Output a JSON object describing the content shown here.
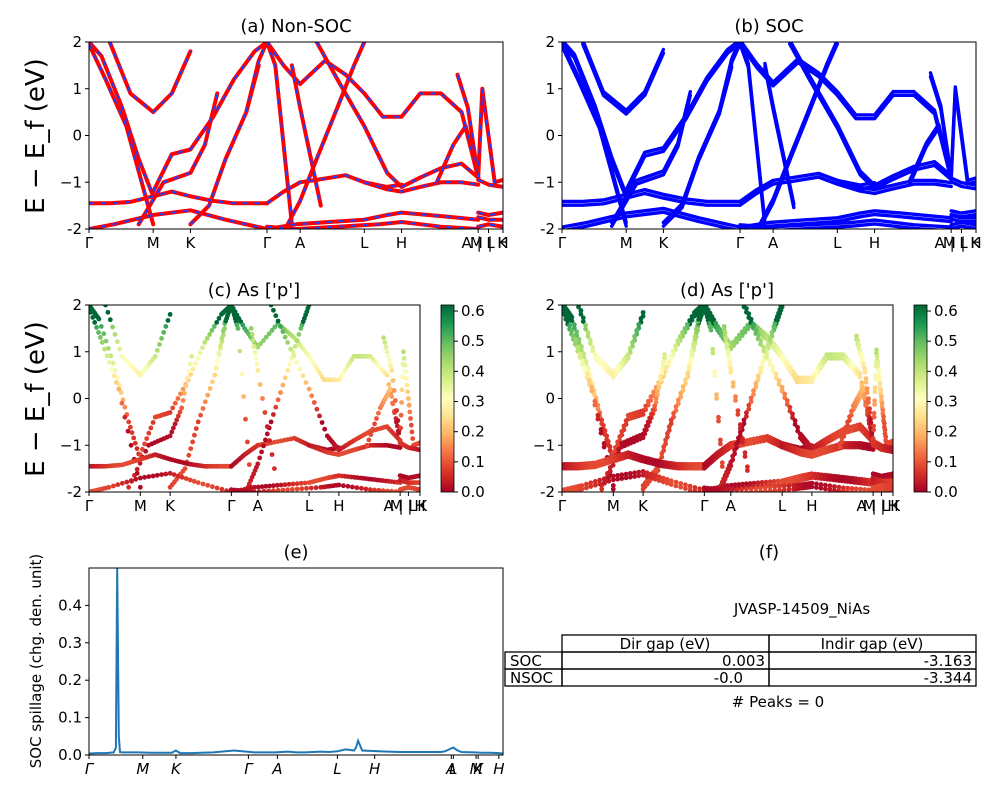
{
  "colors": {
    "nonsoc_base": "#ff0000",
    "nonsoc_dash": "#1f3fff",
    "soc": "#0000ff",
    "spillage": "#1f77b4",
    "colormap": [
      "#a50026",
      "#d73027",
      "#f46d43",
      "#fdae61",
      "#fee08b",
      "#ffffbf",
      "#d9ef8b",
      "#a6d96a",
      "#66bd63",
      "#1a9850",
      "#006837"
    ]
  },
  "chart_data": [
    {
      "id": "a",
      "type": "line",
      "title": "(a) Non-SOC",
      "ylabel": "E − E_f (eV)",
      "ylim": [
        -2,
        2
      ],
      "yticks": [
        "-2",
        "−1",
        "0",
        "1",
        "2"
      ],
      "kpath": [
        "Γ",
        "M",
        "K",
        "Γ",
        "A",
        "L",
        "H",
        "A | L",
        "M | K",
        "H"
      ],
      "kpos": [
        0,
        0.155,
        0.245,
        0.43,
        0.51,
        0.665,
        0.755,
        0.94,
        0.965,
        1.0
      ],
      "series": [
        {
          "x": [
            0,
            0.03,
            0.08,
            0.12,
            0.155
          ],
          "y": [
            2.0,
            1.7,
            0.6,
            -0.5,
            -1.3
          ]
        },
        {
          "x": [
            0,
            0.04,
            0.09,
            0.155
          ],
          "y": [
            1.95,
            1.2,
            0.2,
            -1.9
          ]
        },
        {
          "x": [
            0.05,
            0.1,
            0.155,
            0.2,
            0.245
          ],
          "y": [
            2.0,
            0.9,
            0.5,
            0.9,
            1.8
          ]
        },
        {
          "x": [
            0.155,
            0.2,
            0.245,
            0.3,
            0.35,
            0.4,
            0.43
          ],
          "y": [
            -1.2,
            -0.4,
            -0.3,
            0.4,
            1.2,
            1.8,
            2.0
          ]
        },
        {
          "x": [
            0.12,
            0.18,
            0.245,
            0.28,
            0.31
          ],
          "y": [
            -1.9,
            -1.0,
            -0.8,
            -0.2,
            0.9
          ]
        },
        {
          "x": [
            0.245,
            0.29,
            0.33,
            0.38,
            0.41
          ],
          "y": [
            -1.9,
            -1.5,
            -0.5,
            0.5,
            1.5
          ]
        },
        {
          "x": [
            0.38,
            0.41,
            0.43,
            0.45,
            0.49
          ],
          "y": [
            0.5,
            1.6,
            2.0,
            1.5,
            -1.9
          ]
        },
        {
          "x": [
            0,
            0.05,
            0.1,
            0.155,
            0.2,
            0.245,
            0.3,
            0.35,
            0.4,
            0.43
          ],
          "y": [
            -1.45,
            -1.45,
            -1.42,
            -1.3,
            -1.2,
            -1.3,
            -1.4,
            -1.45,
            -1.45,
            -1.45
          ]
        },
        {
          "x": [
            0,
            0.06,
            0.155,
            0.245,
            0.33,
            0.43
          ],
          "y": [
            -2.0,
            -1.9,
            -1.7,
            -1.6,
            -1.8,
            -2.0
          ]
        },
        {
          "x": [
            0.43,
            0.47,
            0.51,
            0.55,
            0.62,
            0.665,
            0.72,
            0.755
          ],
          "y": [
            -1.45,
            -1.2,
            -1.0,
            -0.95,
            -0.85,
            -1.0,
            -1.1,
            -1.05
          ]
        },
        {
          "x": [
            0.43,
            0.47,
            0.51,
            0.57,
            0.62,
            0.665,
            0.71,
            0.755,
            0.8,
            0.85,
            0.9,
            0.94
          ],
          "y": [
            2.0,
            1.5,
            1.1,
            1.6,
            1.3,
            0.9,
            0.4,
            0.4,
            0.9,
            0.9,
            0.5,
            -0.9
          ]
        },
        {
          "x": [
            0.48,
            0.51,
            0.55,
            0.6,
            0.64,
            0.665
          ],
          "y": [
            -1.9,
            -1.4,
            -0.5,
            0.6,
            1.5,
            2.0
          ]
        },
        {
          "x": [
            0.49,
            0.51,
            0.56
          ],
          "y": [
            1.5,
            0.6,
            -1.5
          ]
        },
        {
          "x": [
            0.55,
            0.6,
            0.665,
            0.72,
            0.755,
            0.8,
            0.85,
            0.9,
            0.94
          ],
          "y": [
            2.0,
            1.2,
            0.2,
            -0.8,
            -1.1,
            -0.9,
            -0.7,
            -0.6,
            -0.9
          ]
        },
        {
          "x": [
            0.665,
            0.72,
            0.755,
            0.8,
            0.85,
            0.9,
            0.94
          ],
          "y": [
            -1.0,
            -1.15,
            -1.2,
            -1.1,
            -1.0,
            -1.0,
            -1.05
          ]
        },
        {
          "x": [
            0.43,
            0.5,
            0.58,
            0.665,
            0.72,
            0.755,
            0.82,
            0.88,
            0.94
          ],
          "y": [
            -2.0,
            -1.9,
            -1.85,
            -1.8,
            -1.7,
            -1.65,
            -1.7,
            -1.75,
            -1.8
          ]
        },
        {
          "x": [
            0.43,
            0.5,
            0.6,
            0.7,
            0.755,
            0.85,
            0.94
          ],
          "y": [
            -1.95,
            -2.0,
            -1.95,
            -1.9,
            -1.85,
            -1.95,
            -2.0
          ]
        },
        {
          "x": [
            0.84,
            0.88,
            0.91,
            0.94
          ],
          "y": [
            -1.0,
            -0.2,
            0.2,
            -0.9
          ]
        },
        {
          "x": [
            0.89,
            0.915,
            0.94
          ],
          "y": [
            1.3,
            0.6,
            -0.9
          ]
        },
        {
          "x": [
            0.94,
            0.95,
            0.965,
            0.98,
            1.0
          ],
          "y": [
            -0.9,
            1.0,
            0.0,
            -1.0,
            -0.95
          ]
        },
        {
          "x": [
            0.94,
            0.965,
            1.0
          ],
          "y": [
            -0.95,
            -1.05,
            -1.1
          ]
        },
        {
          "x": [
            0.94,
            0.965,
            1.0
          ],
          "y": [
            -1.65,
            -1.7,
            -1.65
          ]
        },
        {
          "x": [
            0.94,
            0.965,
            1.0
          ],
          "y": [
            -1.75,
            -1.8,
            -1.8
          ]
        },
        {
          "x": [
            0.94,
            0.965,
            1.0
          ],
          "y": [
            -1.95,
            -1.9,
            -1.95
          ]
        }
      ]
    },
    {
      "id": "b",
      "type": "line",
      "title": "(b) SOC",
      "ylim": [
        -2,
        2
      ],
      "yticks": [
        "-2",
        "−1",
        "0",
        "1",
        "2"
      ],
      "kpath": [
        "Γ",
        "M",
        "K",
        "Γ",
        "A",
        "L",
        "H",
        "A | L",
        "M | K",
        "H"
      ],
      "kpos": [
        0,
        0.155,
        0.245,
        0.43,
        0.51,
        0.665,
        0.755,
        0.94,
        0.965,
        1.0
      ]
    },
    {
      "id": "c",
      "type": "scatter",
      "title": "(c)  As ['p']",
      "ylabel": "E − E_f (eV)",
      "ylim": [
        -2,
        2
      ],
      "yticks": [
        "-2",
        "−1",
        "0",
        "1",
        "2"
      ],
      "kpath": [
        "Γ",
        "M",
        "K",
        "Γ",
        "A",
        "L",
        "H",
        "A | L",
        "M | K",
        "H"
      ],
      "kpos": [
        0,
        0.155,
        0.245,
        0.43,
        0.51,
        0.665,
        0.755,
        0.94,
        0.965,
        1.0
      ],
      "colorbar": {
        "ticks": [
          "0.0",
          "0.1",
          "0.2",
          "0.3",
          "0.4",
          "0.5",
          "0.6"
        ],
        "range": [
          0,
          0.62
        ]
      }
    },
    {
      "id": "d",
      "type": "scatter",
      "title": "(d) As ['p']",
      "ylim": [
        -2,
        2
      ],
      "yticks": [
        "-2",
        "−1",
        "0",
        "1",
        "2"
      ],
      "kpath": [
        "Γ",
        "M",
        "K",
        "Γ",
        "A",
        "L",
        "H",
        "A | L",
        "M | K",
        "H"
      ],
      "kpos": [
        0,
        0.155,
        0.245,
        0.43,
        0.51,
        0.665,
        0.755,
        0.94,
        0.965,
        1.0
      ],
      "colorbar": {
        "ticks": [
          "0.0",
          "0.1",
          "0.2",
          "0.3",
          "0.4",
          "0.5",
          "0.6"
        ],
        "range": [
          0,
          0.62
        ]
      }
    },
    {
      "id": "e",
      "type": "line",
      "title": "(e)",
      "ylabel": "SOC spillage (chg. den. unit)",
      "ylim": [
        0,
        0.5
      ],
      "yticks": [
        "0.0",
        "0.1",
        "0.2",
        "0.3",
        "0.4"
      ],
      "kpath": [
        "Γ",
        "M",
        "K",
        "Γ",
        "A",
        "L",
        "H",
        "A",
        "L",
        "M",
        "K",
        "H"
      ],
      "kpos": [
        0,
        0.13,
        0.21,
        0.385,
        0.455,
        0.6,
        0.69,
        0.875,
        0.88,
        0.935,
        0.94,
        0.99
      ],
      "x": [
        0,
        0.02,
        0.04,
        0.06,
        0.065,
        0.068,
        0.072,
        0.075,
        0.08,
        0.1,
        0.12,
        0.15,
        0.18,
        0.2,
        0.21,
        0.22,
        0.25,
        0.27,
        0.3,
        0.32,
        0.35,
        0.38,
        0.4,
        0.42,
        0.45,
        0.48,
        0.5,
        0.52,
        0.54,
        0.56,
        0.58,
        0.6,
        0.62,
        0.64,
        0.645,
        0.65,
        0.66,
        0.7,
        0.75,
        0.8,
        0.85,
        0.86,
        0.87,
        0.88,
        0.89,
        0.9,
        0.93,
        0.95,
        0.97,
        0.99,
        1.0
      ],
      "y": [
        0.004,
        0.005,
        0.005,
        0.007,
        0.02,
        0.5,
        0.05,
        0.008,
        0.007,
        0.007,
        0.007,
        0.006,
        0.006,
        0.006,
        0.012,
        0.005,
        0.005,
        0.006,
        0.007,
        0.009,
        0.012,
        0.009,
        0.007,
        0.007,
        0.007,
        0.009,
        0.007,
        0.007,
        0.008,
        0.009,
        0.008,
        0.01,
        0.015,
        0.012,
        0.02,
        0.038,
        0.012,
        0.01,
        0.008,
        0.008,
        0.008,
        0.01,
        0.015,
        0.02,
        0.012,
        0.008,
        0.007,
        0.006,
        0.006,
        0.005,
        0.004
      ]
    }
  ],
  "table_f": {
    "title": "(f)",
    "material": "JVASP-14509_NiAs",
    "headers": [
      "Dir gap (eV)",
      "Indir gap (eV)"
    ],
    "rows": [
      {
        "label": "SOC",
        "dir": "0.003",
        "indir": "-3.163"
      },
      {
        "label": "NSOC",
        "dir": "-0.0",
        "indir": "-3.344"
      }
    ],
    "peaks": "# Peaks = 0"
  }
}
